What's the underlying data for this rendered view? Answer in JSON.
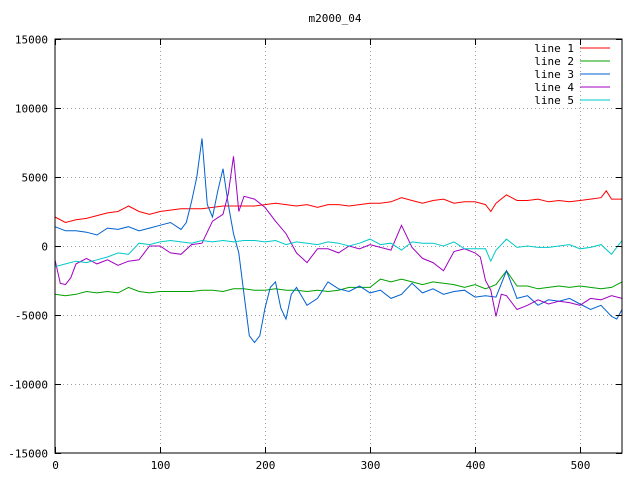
{
  "chart_data": {
    "type": "line",
    "title": "m2000_04",
    "xlabel": "",
    "ylabel": "",
    "xlim": [
      0,
      540
    ],
    "ylim": [
      -15000,
      15000
    ],
    "xticks": [
      0,
      100,
      200,
      300,
      400,
      500
    ],
    "yticks": [
      -15000,
      -10000,
      -5000,
      0,
      5000,
      10000,
      15000
    ],
    "grid": true,
    "legend_position": "top-right",
    "series": [
      {
        "name": "line 1",
        "color": "#ff0000",
        "points": [
          [
            0,
            2100
          ],
          [
            10,
            1700
          ],
          [
            20,
            1900
          ],
          [
            30,
            2000
          ],
          [
            40,
            2200
          ],
          [
            50,
            2400
          ],
          [
            60,
            2500
          ],
          [
            70,
            2900
          ],
          [
            80,
            2500
          ],
          [
            90,
            2300
          ],
          [
            100,
            2500
          ],
          [
            110,
            2600
          ],
          [
            120,
            2700
          ],
          [
            130,
            2700
          ],
          [
            140,
            2700
          ],
          [
            150,
            2800
          ],
          [
            160,
            2900
          ],
          [
            170,
            2900
          ],
          [
            180,
            2900
          ],
          [
            190,
            2900
          ],
          [
            200,
            3000
          ],
          [
            210,
            3100
          ],
          [
            220,
            3000
          ],
          [
            230,
            2900
          ],
          [
            240,
            3000
          ],
          [
            250,
            2800
          ],
          [
            260,
            3000
          ],
          [
            270,
            3000
          ],
          [
            280,
            2900
          ],
          [
            290,
            3000
          ],
          [
            300,
            3100
          ],
          [
            310,
            3100
          ],
          [
            320,
            3200
          ],
          [
            330,
            3500
          ],
          [
            340,
            3300
          ],
          [
            350,
            3100
          ],
          [
            360,
            3300
          ],
          [
            370,
            3400
          ],
          [
            380,
            3100
          ],
          [
            390,
            3200
          ],
          [
            400,
            3200
          ],
          [
            410,
            3000
          ],
          [
            415,
            2500
          ],
          [
            420,
            3100
          ],
          [
            430,
            3700
          ],
          [
            440,
            3300
          ],
          [
            450,
            3300
          ],
          [
            460,
            3400
          ],
          [
            470,
            3200
          ],
          [
            480,
            3300
          ],
          [
            490,
            3200
          ],
          [
            500,
            3300
          ],
          [
            510,
            3400
          ],
          [
            520,
            3500
          ],
          [
            525,
            4000
          ],
          [
            530,
            3400
          ],
          [
            540,
            3400
          ]
        ]
      },
      {
        "name": "line 2",
        "color": "#00a000",
        "points": [
          [
            0,
            -3500
          ],
          [
            10,
            -3600
          ],
          [
            20,
            -3500
          ],
          [
            30,
            -3300
          ],
          [
            40,
            -3400
          ],
          [
            50,
            -3300
          ],
          [
            60,
            -3400
          ],
          [
            70,
            -3000
          ],
          [
            80,
            -3300
          ],
          [
            90,
            -3400
          ],
          [
            100,
            -3300
          ],
          [
            110,
            -3300
          ],
          [
            120,
            -3300
          ],
          [
            130,
            -3300
          ],
          [
            140,
            -3200
          ],
          [
            150,
            -3200
          ],
          [
            160,
            -3300
          ],
          [
            170,
            -3100
          ],
          [
            180,
            -3100
          ],
          [
            190,
            -3200
          ],
          [
            200,
            -3200
          ],
          [
            210,
            -3100
          ],
          [
            220,
            -3200
          ],
          [
            230,
            -3200
          ],
          [
            240,
            -3300
          ],
          [
            250,
            -3200
          ],
          [
            260,
            -3300
          ],
          [
            270,
            -3200
          ],
          [
            280,
            -3000
          ],
          [
            290,
            -3000
          ],
          [
            300,
            -3000
          ],
          [
            310,
            -2400
          ],
          [
            320,
            -2600
          ],
          [
            330,
            -2400
          ],
          [
            340,
            -2600
          ],
          [
            350,
            -2800
          ],
          [
            360,
            -2600
          ],
          [
            370,
            -2700
          ],
          [
            380,
            -2800
          ],
          [
            390,
            -3000
          ],
          [
            400,
            -2800
          ],
          [
            410,
            -3100
          ],
          [
            420,
            -2800
          ],
          [
            430,
            -1800
          ],
          [
            440,
            -2900
          ],
          [
            450,
            -2900
          ],
          [
            460,
            -3100
          ],
          [
            470,
            -3000
          ],
          [
            480,
            -2900
          ],
          [
            490,
            -3000
          ],
          [
            500,
            -2900
          ],
          [
            510,
            -3000
          ],
          [
            520,
            -3100
          ],
          [
            530,
            -3000
          ],
          [
            540,
            -2600
          ]
        ]
      },
      {
        "name": "line 3",
        "color": "#0060d0",
        "points": [
          [
            0,
            1400
          ],
          [
            10,
            1100
          ],
          [
            20,
            1100
          ],
          [
            30,
            1000
          ],
          [
            40,
            800
          ],
          [
            50,
            1300
          ],
          [
            60,
            1200
          ],
          [
            70,
            1400
          ],
          [
            80,
            1100
          ],
          [
            90,
            1300
          ],
          [
            100,
            1500
          ],
          [
            110,
            1700
          ],
          [
            120,
            1200
          ],
          [
            125,
            1700
          ],
          [
            130,
            3200
          ],
          [
            135,
            5000
          ],
          [
            140,
            7800
          ],
          [
            145,
            3000
          ],
          [
            150,
            2100
          ],
          [
            155,
            4000
          ],
          [
            160,
            5600
          ],
          [
            165,
            3000
          ],
          [
            170,
            900
          ],
          [
            175,
            -500
          ],
          [
            180,
            -3500
          ],
          [
            185,
            -6500
          ],
          [
            190,
            -7000
          ],
          [
            195,
            -6500
          ],
          [
            200,
            -4500
          ],
          [
            205,
            -3000
          ],
          [
            210,
            -2600
          ],
          [
            215,
            -4500
          ],
          [
            220,
            -5300
          ],
          [
            225,
            -3500
          ],
          [
            230,
            -3000
          ],
          [
            240,
            -4300
          ],
          [
            250,
            -3800
          ],
          [
            260,
            -2600
          ],
          [
            270,
            -3100
          ],
          [
            280,
            -3300
          ],
          [
            290,
            -2900
          ],
          [
            300,
            -3400
          ],
          [
            310,
            -3200
          ],
          [
            320,
            -3800
          ],
          [
            330,
            -3500
          ],
          [
            340,
            -2700
          ],
          [
            350,
            -3400
          ],
          [
            360,
            -3100
          ],
          [
            370,
            -3500
          ],
          [
            380,
            -3300
          ],
          [
            390,
            -3200
          ],
          [
            400,
            -3700
          ],
          [
            410,
            -3600
          ],
          [
            420,
            -3700
          ],
          [
            430,
            -1800
          ],
          [
            440,
            -3800
          ],
          [
            450,
            -3600
          ],
          [
            460,
            -4300
          ],
          [
            470,
            -3900
          ],
          [
            480,
            -4000
          ],
          [
            490,
            -3800
          ],
          [
            500,
            -4200
          ],
          [
            510,
            -4600
          ],
          [
            520,
            -4300
          ],
          [
            530,
            -5100
          ],
          [
            535,
            -5300
          ],
          [
            540,
            -4600
          ]
        ]
      },
      {
        "name": "line 4",
        "color": "#a000c0",
        "points": [
          [
            0,
            -1000
          ],
          [
            5,
            -2700
          ],
          [
            10,
            -2800
          ],
          [
            15,
            -2300
          ],
          [
            20,
            -1300
          ],
          [
            30,
            -900
          ],
          [
            40,
            -1300
          ],
          [
            50,
            -1000
          ],
          [
            60,
            -1400
          ],
          [
            70,
            -1100
          ],
          [
            80,
            -1000
          ],
          [
            90,
            0
          ],
          [
            100,
            0
          ],
          [
            110,
            -500
          ],
          [
            120,
            -600
          ],
          [
            130,
            100
          ],
          [
            140,
            200
          ],
          [
            150,
            1800
          ],
          [
            160,
            2300
          ],
          [
            165,
            3800
          ],
          [
            170,
            6500
          ],
          [
            175,
            2500
          ],
          [
            180,
            3600
          ],
          [
            190,
            3400
          ],
          [
            200,
            2800
          ],
          [
            210,
            1800
          ],
          [
            220,
            900
          ],
          [
            230,
            -500
          ],
          [
            240,
            -1200
          ],
          [
            250,
            -200
          ],
          [
            260,
            -200
          ],
          [
            270,
            -500
          ],
          [
            280,
            0
          ],
          [
            290,
            -200
          ],
          [
            300,
            100
          ],
          [
            310,
            -100
          ],
          [
            320,
            -300
          ],
          [
            330,
            1500
          ],
          [
            340,
            -100
          ],
          [
            350,
            -900
          ],
          [
            360,
            -1200
          ],
          [
            370,
            -1800
          ],
          [
            380,
            -400
          ],
          [
            390,
            -200
          ],
          [
            400,
            -500
          ],
          [
            405,
            -800
          ],
          [
            410,
            -2500
          ],
          [
            415,
            -3200
          ],
          [
            420,
            -5100
          ],
          [
            425,
            -3500
          ],
          [
            430,
            -3600
          ],
          [
            440,
            -4600
          ],
          [
            450,
            -4300
          ],
          [
            460,
            -3900
          ],
          [
            470,
            -4200
          ],
          [
            480,
            -4000
          ],
          [
            490,
            -4100
          ],
          [
            500,
            -4300
          ],
          [
            510,
            -3800
          ],
          [
            520,
            -3900
          ],
          [
            530,
            -3600
          ],
          [
            540,
            -3800
          ]
        ]
      },
      {
        "name": "line 5",
        "color": "#00c8c8",
        "points": [
          [
            0,
            -1500
          ],
          [
            10,
            -1300
          ],
          [
            20,
            -1100
          ],
          [
            30,
            -1200
          ],
          [
            40,
            -1000
          ],
          [
            50,
            -800
          ],
          [
            60,
            -500
          ],
          [
            70,
            -600
          ],
          [
            80,
            200
          ],
          [
            90,
            100
          ],
          [
            100,
            300
          ],
          [
            110,
            400
          ],
          [
            120,
            300
          ],
          [
            130,
            200
          ],
          [
            140,
            400
          ],
          [
            150,
            300
          ],
          [
            160,
            400
          ],
          [
            170,
            300
          ],
          [
            180,
            400
          ],
          [
            190,
            400
          ],
          [
            200,
            300
          ],
          [
            210,
            400
          ],
          [
            220,
            100
          ],
          [
            230,
            300
          ],
          [
            240,
            200
          ],
          [
            250,
            100
          ],
          [
            260,
            300
          ],
          [
            270,
            200
          ],
          [
            280,
            0
          ],
          [
            290,
            200
          ],
          [
            300,
            500
          ],
          [
            310,
            100
          ],
          [
            320,
            200
          ],
          [
            330,
            -300
          ],
          [
            340,
            300
          ],
          [
            350,
            200
          ],
          [
            360,
            200
          ],
          [
            370,
            0
          ],
          [
            380,
            300
          ],
          [
            390,
            -200
          ],
          [
            400,
            -200
          ],
          [
            410,
            -200
          ],
          [
            415,
            -1100
          ],
          [
            420,
            -300
          ],
          [
            430,
            500
          ],
          [
            440,
            -100
          ],
          [
            450,
            0
          ],
          [
            460,
            -100
          ],
          [
            470,
            -100
          ],
          [
            480,
            0
          ],
          [
            490,
            100
          ],
          [
            500,
            -200
          ],
          [
            510,
            -100
          ],
          [
            520,
            100
          ],
          [
            530,
            -600
          ],
          [
            540,
            400
          ]
        ]
      }
    ]
  }
}
